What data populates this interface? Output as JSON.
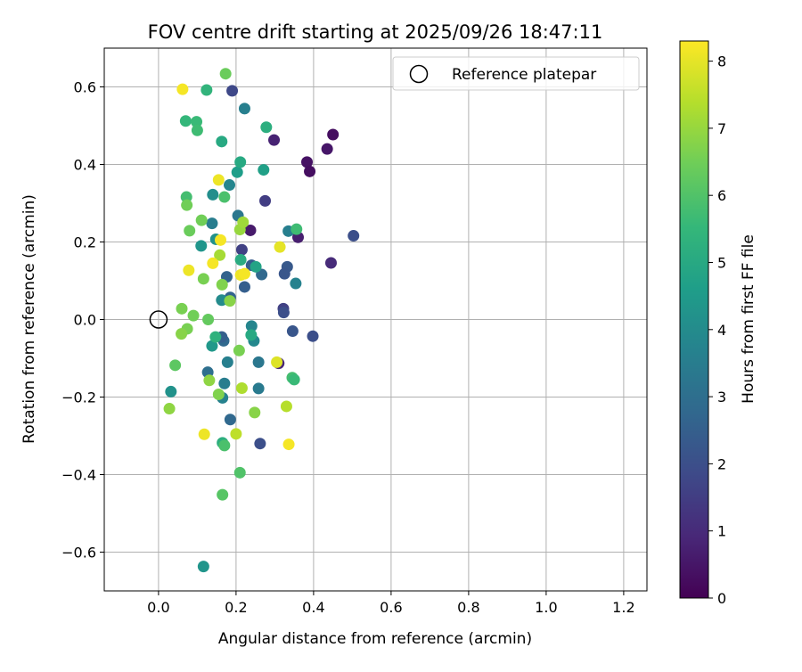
{
  "chart_data": {
    "type": "scatter",
    "title": "FOV centre drift starting at 2025/09/26 18:47:11",
    "xlabel": "Angular distance from reference (arcmin)",
    "ylabel": "Rotation from reference (arcmin)",
    "xlim": [
      -0.14,
      1.26
    ],
    "ylim": [
      -0.7,
      0.7
    ],
    "xticks": [
      0.0,
      0.2,
      0.4,
      0.6,
      0.8,
      1.0,
      1.2
    ],
    "xtick_labels": [
      "0.0",
      "0.2",
      "0.4",
      "0.6",
      "0.8",
      "1.0",
      "1.2"
    ],
    "yticks": [
      -0.6,
      -0.4,
      -0.2,
      0.0,
      0.2,
      0.4,
      0.6
    ],
    "ytick_labels": [
      "−0.6",
      "−0.4",
      "−0.2",
      "0.0",
      "0.2",
      "0.4",
      "0.6"
    ],
    "grid": true,
    "legend": {
      "position": "top-right",
      "entries": [
        "Reference platepar"
      ]
    },
    "reference_point": {
      "x": 0.0,
      "y": 0.0,
      "label": "Reference platepar"
    },
    "colorbar": {
      "label": "Hours from first FF file",
      "range": [
        0,
        8.3
      ],
      "ticks": [
        0,
        1,
        2,
        3,
        4,
        5,
        6,
        7,
        8
      ],
      "tick_labels": [
        "0",
        "1",
        "2",
        "3",
        "4",
        "5",
        "6",
        "7",
        "8"
      ],
      "colormap": "viridis"
    },
    "points": [
      {
        "x": 0.45,
        "y": 0.477,
        "h": 0.3
      },
      {
        "x": 0.383,
        "y": 0.406,
        "h": 0.4
      },
      {
        "x": 0.435,
        "y": 0.44,
        "h": 0.5
      },
      {
        "x": 0.39,
        "y": 0.382,
        "h": 0.3
      },
      {
        "x": 0.298,
        "y": 0.463,
        "h": 0.8
      },
      {
        "x": 0.36,
        "y": 0.212,
        "h": 0.7
      },
      {
        "x": 0.237,
        "y": 0.23,
        "h": 0.6
      },
      {
        "x": 0.445,
        "y": 0.146,
        "h": 1.0
      },
      {
        "x": 0.31,
        "y": -0.113,
        "h": 0.9
      },
      {
        "x": 0.19,
        "y": 0.59,
        "h": 1.8
      },
      {
        "x": 0.503,
        "y": 0.216,
        "h": 2.0
      },
      {
        "x": 0.275,
        "y": 0.306,
        "h": 1.5
      },
      {
        "x": 0.215,
        "y": 0.18,
        "h": 1.6
      },
      {
        "x": 0.398,
        "y": -0.043,
        "h": 2.0
      },
      {
        "x": 0.346,
        "y": -0.03,
        "h": 2.2
      },
      {
        "x": 0.322,
        "y": 0.028,
        "h": 1.6
      },
      {
        "x": 0.323,
        "y": 0.018,
        "h": 2.0
      },
      {
        "x": 0.332,
        "y": 0.136,
        "h": 2.3
      },
      {
        "x": 0.325,
        "y": 0.118,
        "h": 2.2
      },
      {
        "x": 0.262,
        "y": -0.32,
        "h": 2.0
      },
      {
        "x": 0.222,
        "y": 0.084,
        "h": 2.5
      },
      {
        "x": 0.176,
        "y": 0.11,
        "h": 2.6
      },
      {
        "x": 0.24,
        "y": 0.14,
        "h": 2.4
      },
      {
        "x": 0.266,
        "y": 0.116,
        "h": 2.8
      },
      {
        "x": 0.185,
        "y": 0.057,
        "h": 2.6
      },
      {
        "x": 0.168,
        "y": -0.055,
        "h": 2.8
      },
      {
        "x": 0.163,
        "y": -0.045,
        "h": 2.5
      },
      {
        "x": 0.185,
        "y": -0.258,
        "h": 2.8
      },
      {
        "x": 0.138,
        "y": 0.248,
        "h": 3.5
      },
      {
        "x": 0.205,
        "y": 0.268,
        "h": 3.3
      },
      {
        "x": 0.222,
        "y": 0.544,
        "h": 3.6
      },
      {
        "x": 0.127,
        "y": -0.136,
        "h": 3.0
      },
      {
        "x": 0.258,
        "y": -0.11,
        "h": 3.3
      },
      {
        "x": 0.258,
        "y": -0.178,
        "h": 3.4
      },
      {
        "x": 0.17,
        "y": -0.165,
        "h": 3.5
      },
      {
        "x": 0.165,
        "y": -0.202,
        "h": 3.7
      },
      {
        "x": 0.178,
        "y": -0.11,
        "h": 3.6
      },
      {
        "x": 0.183,
        "y": 0.347,
        "h": 3.8
      },
      {
        "x": 0.335,
        "y": 0.228,
        "h": 3.6
      },
      {
        "x": 0.354,
        "y": 0.093,
        "h": 3.7
      },
      {
        "x": 0.24,
        "y": -0.017,
        "h": 3.8
      },
      {
        "x": 0.246,
        "y": -0.055,
        "h": 3.9
      },
      {
        "x": 0.163,
        "y": 0.05,
        "h": 4.0
      },
      {
        "x": 0.14,
        "y": 0.322,
        "h": 4.1
      },
      {
        "x": 0.148,
        "y": 0.207,
        "h": 4.2
      },
      {
        "x": 0.11,
        "y": 0.19,
        "h": 4.3
      },
      {
        "x": 0.032,
        "y": -0.186,
        "h": 4.2
      },
      {
        "x": 0.116,
        "y": -0.637,
        "h": 4.3
      },
      {
        "x": 0.138,
        "y": -0.068,
        "h": 4.4
      },
      {
        "x": 0.203,
        "y": 0.38,
        "h": 4.6
      },
      {
        "x": 0.271,
        "y": 0.386,
        "h": 4.7
      },
      {
        "x": 0.211,
        "y": 0.406,
        "h": 5.0
      },
      {
        "x": 0.251,
        "y": 0.136,
        "h": 4.8
      },
      {
        "x": 0.239,
        "y": -0.04,
        "h": 5.0
      },
      {
        "x": 0.163,
        "y": 0.459,
        "h": 5.0
      },
      {
        "x": 0.278,
        "y": 0.496,
        "h": 5.2
      },
      {
        "x": 0.212,
        "y": 0.154,
        "h": 5.1
      },
      {
        "x": 0.165,
        "y": -0.318,
        "h": 5.2
      },
      {
        "x": 0.147,
        "y": -0.045,
        "h": 5.3
      },
      {
        "x": 0.124,
        "y": 0.592,
        "h": 5.4
      },
      {
        "x": 0.07,
        "y": 0.512,
        "h": 5.5
      },
      {
        "x": 0.098,
        "y": 0.51,
        "h": 5.6
      },
      {
        "x": 0.1,
        "y": 0.488,
        "h": 5.7
      },
      {
        "x": 0.345,
        "y": -0.15,
        "h": 5.8
      },
      {
        "x": 0.35,
        "y": -0.155,
        "h": 5.6
      },
      {
        "x": 0.356,
        "y": 0.233,
        "h": 5.7
      },
      {
        "x": 0.072,
        "y": 0.316,
        "h": 5.8
      },
      {
        "x": 0.17,
        "y": 0.316,
        "h": 5.9
      },
      {
        "x": 0.17,
        "y": -0.325,
        "h": 5.9
      },
      {
        "x": 0.21,
        "y": -0.395,
        "h": 6.0
      },
      {
        "x": 0.165,
        "y": -0.452,
        "h": 6.1
      },
      {
        "x": 0.043,
        "y": -0.118,
        "h": 6.2
      },
      {
        "x": 0.128,
        "y": 0.0,
        "h": 6.3
      },
      {
        "x": 0.173,
        "y": 0.634,
        "h": 6.4
      },
      {
        "x": 0.111,
        "y": 0.256,
        "h": 6.5
      },
      {
        "x": 0.073,
        "y": 0.295,
        "h": 6.5
      },
      {
        "x": 0.08,
        "y": 0.229,
        "h": 6.4
      },
      {
        "x": 0.116,
        "y": 0.105,
        "h": 6.6
      },
      {
        "x": 0.164,
        "y": 0.09,
        "h": 6.7
      },
      {
        "x": 0.184,
        "y": 0.048,
        "h": 6.8
      },
      {
        "x": 0.06,
        "y": 0.028,
        "h": 6.6
      },
      {
        "x": 0.09,
        "y": 0.01,
        "h": 6.5
      },
      {
        "x": 0.074,
        "y": -0.024,
        "h": 6.6
      },
      {
        "x": 0.059,
        "y": -0.037,
        "h": 6.8
      },
      {
        "x": 0.131,
        "y": -0.157,
        "h": 6.9
      },
      {
        "x": 0.155,
        "y": -0.193,
        "h": 6.7
      },
      {
        "x": 0.208,
        "y": -0.08,
        "h": 6.6
      },
      {
        "x": 0.248,
        "y": -0.24,
        "h": 6.8
      },
      {
        "x": 0.028,
        "y": -0.23,
        "h": 6.9
      },
      {
        "x": 0.21,
        "y": 0.232,
        "h": 7.0
      },
      {
        "x": 0.218,
        "y": 0.251,
        "h": 7.1
      },
      {
        "x": 0.158,
        "y": 0.166,
        "h": 7.2
      },
      {
        "x": 0.215,
        "y": -0.177,
        "h": 7.3
      },
      {
        "x": 0.33,
        "y": -0.224,
        "h": 7.4
      },
      {
        "x": 0.2,
        "y": -0.295,
        "h": 7.5
      },
      {
        "x": 0.305,
        "y": -0.11,
        "h": 7.9
      },
      {
        "x": 0.155,
        "y": 0.36,
        "h": 8.1
      },
      {
        "x": 0.062,
        "y": 0.594,
        "h": 8.2
      },
      {
        "x": 0.16,
        "y": 0.205,
        "h": 8.2
      },
      {
        "x": 0.14,
        "y": 0.145,
        "h": 8.2
      },
      {
        "x": 0.078,
        "y": 0.127,
        "h": 8.1
      },
      {
        "x": 0.212,
        "y": 0.115,
        "h": 8.1
      },
      {
        "x": 0.222,
        "y": 0.118,
        "h": 8.2
      },
      {
        "x": 0.313,
        "y": 0.187,
        "h": 8.0
      },
      {
        "x": 0.118,
        "y": -0.296,
        "h": 8.1
      },
      {
        "x": 0.336,
        "y": -0.322,
        "h": 8.2
      }
    ]
  }
}
